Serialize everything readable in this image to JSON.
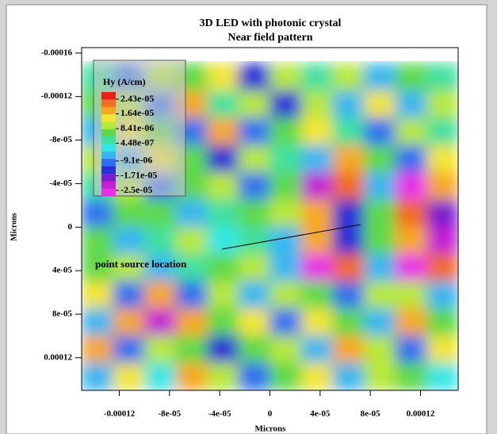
{
  "chart_data": {
    "type": "heatmap",
    "title": "3D LED with photonic crystal",
    "subtitle": "Near field pattern",
    "x_label": "Microns",
    "y_label": "Microns",
    "annotation": "point source location",
    "xlim": [
      -0.00015,
      0.00015
    ],
    "ylim": [
      -0.000165,
      0.00015
    ],
    "y_inverted": true,
    "xticks": [
      -0.00012,
      {
        "value": -8e-05,
        "label": "-8e-05"
      },
      {
        "value": -4e-05,
        "label": "-4e-05"
      },
      0,
      {
        "value": 4e-05,
        "label": "4e-05"
      },
      {
        "value": 8e-05,
        "label": "8e-05"
      },
      0.00012
    ],
    "yticks": [
      {
        "value": -0.00016,
        "label": "-0.00016"
      },
      -0.00012,
      {
        "value": -8e-05,
        "label": "-8e-05"
      },
      {
        "value": -4e-05,
        "label": "-4e-05"
      },
      0,
      {
        "value": 4e-05,
        "label": "4e-05"
      },
      {
        "value": 8e-05,
        "label": "8e-05"
      },
      0.00012
    ],
    "legend": {
      "title": "Hy (A/cm)",
      "levels": [
        {
          "value": 2.43e-05,
          "label": "2.43e-05"
        },
        {
          "value": 1.64e-05,
          "label": "1.64e-05"
        },
        {
          "value": 8.41e-06,
          "label": "8.41e-06"
        },
        {
          "value": 4.48e-07,
          "label": "4.48e-07"
        },
        {
          "value": -9.1e-06,
          "label": "-9.1e-06"
        },
        {
          "value": -1.71e-05,
          "label": "-1.71e-05"
        },
        {
          "value": -2.5e-05,
          "label": "-2.5e-05"
        }
      ]
    },
    "colors": [
      "#e8201a",
      "#f26b1e",
      "#f7a823",
      "#f2e534",
      "#b8e83a",
      "#5fd94a",
      "#3fe0a0",
      "#35e6e6",
      "#39b6f0",
      "#2f6ff0",
      "#2a2fd6",
      "#7a1fd0",
      "#c21fd6",
      "#e82ee8"
    ],
    "x": [
      -0.0001375,
      -0.0001125,
      -8.75e-05,
      -6.25e-05,
      -3.75e-05,
      -1.25e-05,
      1.25e-05,
      3.75e-05,
      6.25e-05,
      8.75e-05,
      0.0001125,
      0.0001375
    ],
    "y": [
      -0.0001375,
      -0.0001125,
      -8.75e-05,
      -6.25e-05,
      -3.75e-05,
      -1.25e-05,
      1.25e-05,
      3.75e-05,
      6.25e-05,
      8.75e-05,
      0.0001125,
      0.0001375
    ],
    "z": [
      [
        2e-06,
        -8e-06,
        1e-05,
        4e-06,
        1.2e-05,
        -1.2e-05,
        8e-06,
        0,
        1e-05,
        -6e-06,
        6e-06,
        2e-06
      ],
      [
        6e-06,
        8e-06,
        -1e-05,
        1.4e-05,
        0,
        1e-05,
        -1.4e-05,
        8e-06,
        -6e-06,
        1.2e-05,
        -4e-06,
        8e-06
      ],
      [
        -6e-06,
        1.2e-05,
        4e-06,
        -8e-06,
        1.4e-05,
        -1e-05,
        6e-06,
        1.2e-05,
        0,
        -8e-06,
        1e-05,
        0
      ],
      [
        1e-05,
        -4e-06,
        1.2e-05,
        6e-06,
        -1.2e-05,
        8e-06,
        0,
        -4e-06,
        1.4e-05,
        4e-06,
        -1e-05,
        1.2e-05
      ],
      [
        0,
        1e-05,
        -8e-06,
        4e-06,
        8e-06,
        -1e-05,
        4e-06,
        -2e-05,
        1.8e-05,
        -4e-06,
        -2.2e-05,
        1.6e-05
      ],
      [
        -8e-06,
        4e-06,
        6e-06,
        -6e-06,
        2e-06,
        4e-06,
        8e-06,
        1.6e-05,
        -1.4e-05,
        6e-06,
        1.8e-05,
        -1.6e-05
      ],
      [
        6e-06,
        -4e-06,
        2e-06,
        8e-06,
        -2e-06,
        0,
        -6e-06,
        1.4e-05,
        -1.2e-05,
        4e-06,
        1.6e-05,
        -1.8e-05
      ],
      [
        4e-06,
        8e-06,
        -6e-06,
        2e-06,
        6e-06,
        1e-05,
        -4e-06,
        -2.2e-05,
        2e-05,
        -6e-06,
        -2.2e-05,
        2e-05
      ],
      [
        1.2e-05,
        -1e-05,
        1.4e-05,
        -8e-06,
        1e-05,
        -4e-06,
        8e-06,
        6e-06,
        -1e-05,
        1e-05,
        8e-06,
        -6e-06
      ],
      [
        -4e-06,
        1.6e-05,
        -1.8e-05,
        1.6e-05,
        6e-06,
        1.2e-05,
        -8e-06,
        1.2e-05,
        6e-06,
        -4e-06,
        1.4e-05,
        4e-06
      ],
      [
        1.4e-05,
        -8e-06,
        1e-05,
        4e-06,
        -1.2e-05,
        6e-06,
        1e-05,
        -6e-06,
        1.6e-05,
        8e-06,
        -8e-06,
        1.2e-05
      ],
      [
        -6e-06,
        1.2e-05,
        -2e-06,
        1.4e-05,
        8e-06,
        -1e-05,
        4e-06,
        1.2e-05,
        -4e-06,
        1e-05,
        6e-06,
        -2e-06
      ]
    ]
  }
}
